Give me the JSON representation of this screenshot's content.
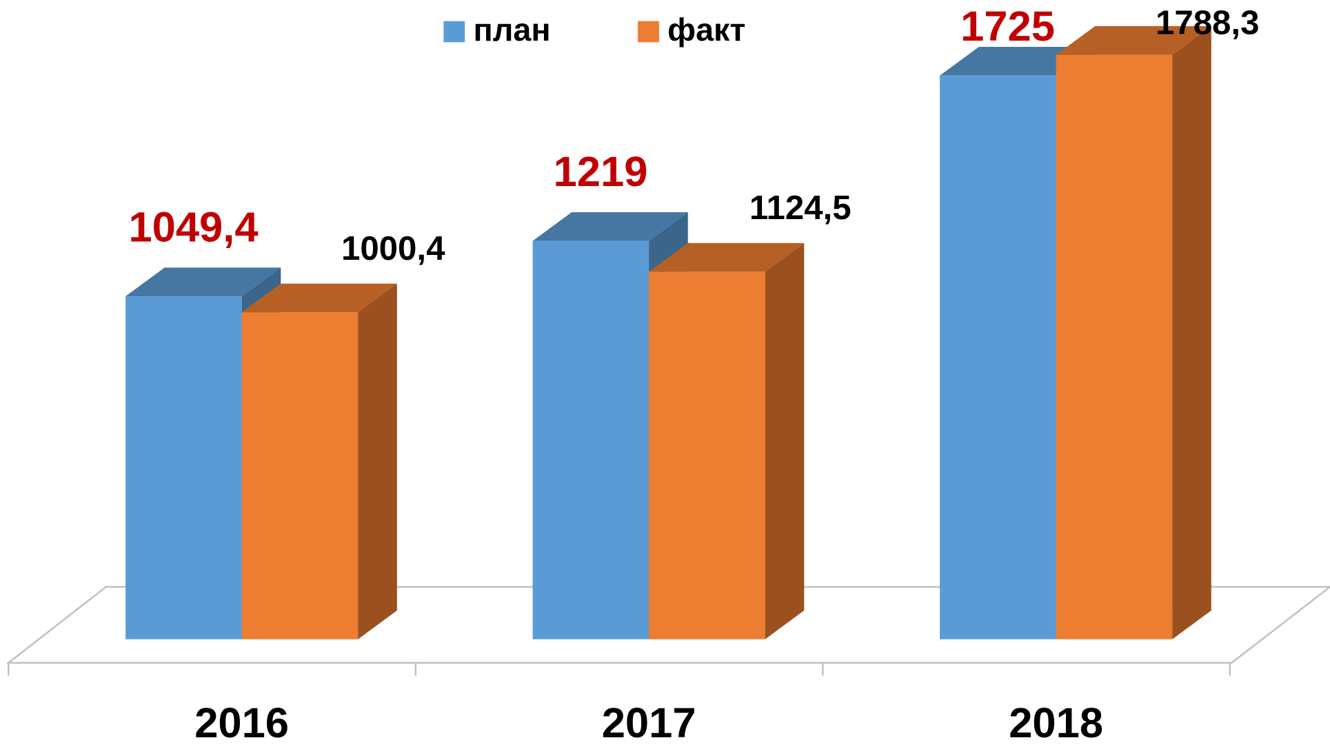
{
  "chart_data": {
    "type": "bar3d",
    "categories": [
      "2016",
      "2017",
      "2018"
    ],
    "series": [
      {
        "name": "план",
        "color": "#5b9bd5",
        "values": [
          1049.4,
          1219,
          1725
        ],
        "value_labels": [
          "1049,4",
          "1219",
          "1725"
        ],
        "label_color": "#c00000"
      },
      {
        "name": "факт",
        "color": "#ed7d31",
        "values": [
          1000.4,
          1124.5,
          1788.3
        ],
        "value_labels": [
          "1000,4",
          "1124,5",
          "1788,3"
        ],
        "label_color": "#000000"
      }
    ],
    "legend": "top"
  }
}
